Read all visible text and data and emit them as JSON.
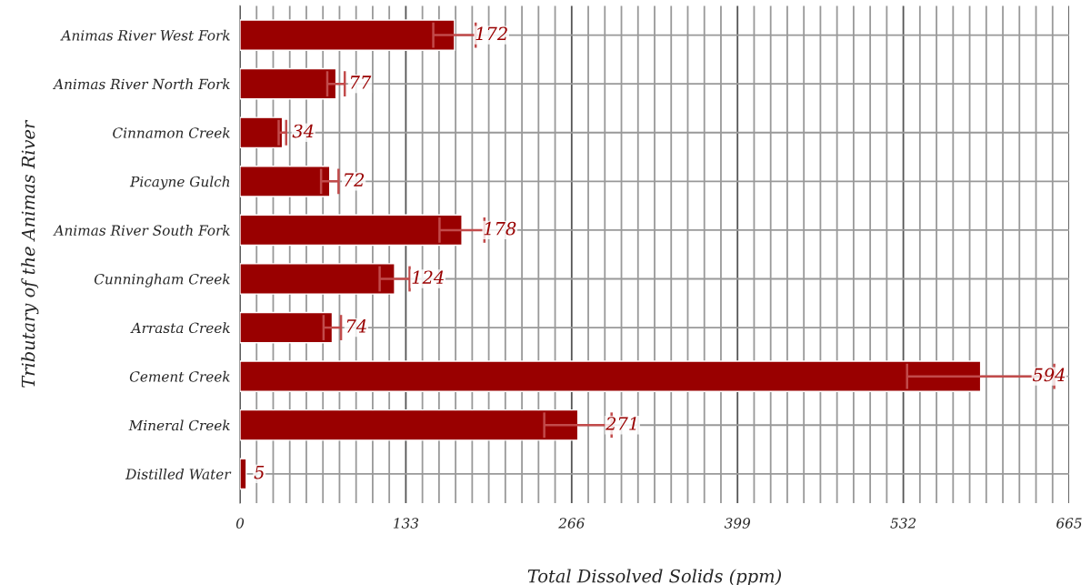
{
  "chart_data": {
    "type": "bar",
    "orientation": "horizontal",
    "xlabel": "Total Dissolved Solids (ppm)",
    "ylabel": "Tributary of the Animas River",
    "categories": [
      "Animas River West Fork",
      "Animas River North Fork",
      "Cinnamon Creek",
      "Picayne Gulch",
      "Animas River South Fork",
      "Cunningham Creek",
      "Arrasta Creek",
      "Cement Creek",
      "Mineral Creek",
      "Distilled Water"
    ],
    "values": [
      172,
      77,
      34,
      72,
      178,
      124,
      74,
      594,
      271,
      5
    ],
    "errors": [
      17,
      7,
      3,
      7,
      18,
      12,
      7,
      59,
      27,
      null
    ],
    "color": "#990000",
    "data_labels": true,
    "xlim": [
      0,
      665
    ],
    "xticks": [
      0,
      {
        "value": 13.3,
        "label": null
      },
      {
        "value": 26.6,
        "label": null
      },
      {
        "value": 39.9,
        "label": null
      },
      {
        "value": 53.2,
        "label": null
      },
      {
        "value": 66.5,
        "label": null
      },
      {
        "value": 79.8,
        "label": null
      },
      {
        "value": 93.1,
        "label": null
      },
      {
        "value": 106.4,
        "label": null
      },
      {
        "value": 119.7,
        "label": null
      },
      133,
      {
        "value": 146.3,
        "label": null
      },
      {
        "value": 159.6,
        "label": null
      },
      {
        "value": 172.9,
        "label": null
      },
      {
        "value": 186.2,
        "label": null
      },
      {
        "value": 199.5,
        "label": null
      },
      {
        "value": 212.8,
        "label": null
      },
      {
        "value": 226.1,
        "label": null
      },
      {
        "value": 239.4,
        "label": null
      },
      {
        "value": 252.7,
        "label": null
      },
      266,
      {
        "value": 279.3,
        "label": null
      },
      {
        "value": 292.6,
        "label": null
      },
      {
        "value": 305.9,
        "label": null
      },
      {
        "value": 319.2,
        "label": null
      },
      {
        "value": 332.5,
        "label": null
      },
      {
        "value": 345.8,
        "label": null
      },
      {
        "value": 359.1,
        "label": null
      },
      {
        "value": 372.4,
        "label": null
      },
      {
        "value": 385.7,
        "label": null
      },
      399,
      {
        "value": 412.3,
        "label": null
      },
      {
        "value": 425.6,
        "label": null
      },
      {
        "value": 438.9,
        "label": null
      },
      {
        "value": 452.2,
        "label": null
      },
      {
        "value": 465.5,
        "label": null
      },
      {
        "value": 478.8,
        "label": null
      },
      {
        "value": 492.1,
        "label": null
      },
      {
        "value": 505.4,
        "label": null
      },
      {
        "value": 518.7,
        "label": null
      },
      532,
      {
        "value": 545.3,
        "label": null
      },
      {
        "value": 558.6,
        "label": null
      },
      {
        "value": 571.9,
        "label": null
      },
      {
        "value": 585.2,
        "label": null
      },
      {
        "value": 598.5,
        "label": null
      },
      {
        "value": 611.8,
        "label": null
      },
      {
        "value": 625.1,
        "label": null
      },
      {
        "value": 638.4,
        "label": null
      },
      {
        "value": 651.7,
        "label": null
      },
      665
    ],
    "grid": true
  }
}
